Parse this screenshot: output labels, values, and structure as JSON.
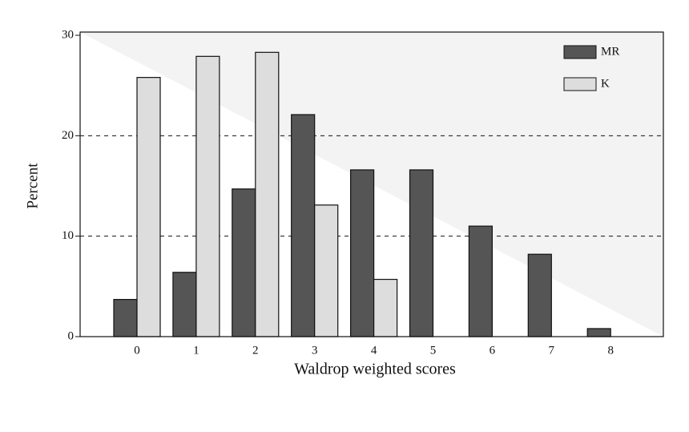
{
  "chart_data": {
    "type": "bar",
    "x_label": "Waldrop weighted scores",
    "y_label": "Percent",
    "categories": [
      "0",
      "1",
      "2",
      "3",
      "4",
      "5",
      "6",
      "7",
      "8"
    ],
    "series": [
      {
        "name": "MR",
        "color": "#555555",
        "values": [
          3.7,
          6.4,
          14.7,
          22.1,
          16.6,
          16.6,
          11.0,
          8.2,
          0.8
        ]
      },
      {
        "name": "K",
        "color": "#dddddd",
        "values": [
          25.8,
          27.9,
          28.3,
          13.1,
          5.7,
          0,
          0,
          0,
          0
        ]
      }
    ],
    "ylim": [
      0,
      30
    ],
    "yticks": [
      0,
      10,
      20,
      30
    ],
    "grid": true,
    "legend": "top-right"
  }
}
